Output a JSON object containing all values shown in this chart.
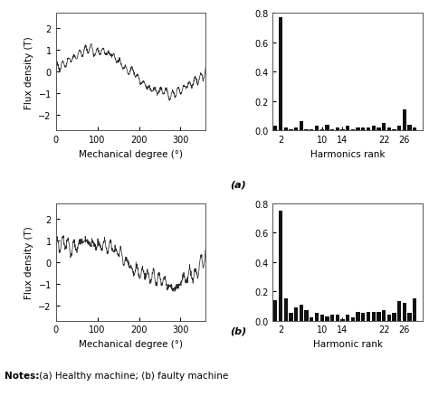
{
  "fig_width": 4.74,
  "fig_height": 4.39,
  "dpi": 100,
  "flux_xlim": [
    0,
    360
  ],
  "flux_xticks": [
    0,
    100,
    200,
    300
  ],
  "flux_yticks": [
    -2,
    -1,
    0,
    1,
    2
  ],
  "flux_ylim": [
    -2.7,
    2.7
  ],
  "flux_xlabel": "Mechanical degree (°)",
  "flux_ylabel": "Flux density (T)",
  "harm_ylim": [
    0,
    0.8
  ],
  "harm_yticks": [
    0.0,
    0.2,
    0.4,
    0.6,
    0.8
  ],
  "harm_xtick_labels": [
    "2",
    "10",
    "14",
    "22",
    "26"
  ],
  "harm_xtick_positions": [
    2,
    10,
    14,
    22,
    26
  ],
  "harm_xlim": [
    0.5,
    29.5
  ],
  "harm_a_xlabel": "Harmonics rank",
  "harm_b_xlabel": "Harmonic rank",
  "label_a": "(a)",
  "label_b": "(b)",
  "notes_bold": "Notes:",
  "notes_rest": " (a) Healthy machine; (b) faulty machine",
  "harm_a_ranks": [
    1,
    2,
    3,
    4,
    5,
    6,
    7,
    8,
    9,
    10,
    11,
    12,
    13,
    14,
    15,
    16,
    17,
    18,
    19,
    20,
    21,
    22,
    23,
    24,
    25,
    26,
    27,
    28
  ],
  "harm_a_values": [
    0.03,
    0.77,
    0.02,
    0.01,
    0.02,
    0.065,
    0.01,
    0.01,
    0.03,
    0.01,
    0.04,
    0.01,
    0.02,
    0.01,
    0.03,
    0.01,
    0.02,
    0.02,
    0.02,
    0.03,
    0.02,
    0.05,
    0.02,
    0.01,
    0.03,
    0.14,
    0.04,
    0.02
  ],
  "harm_b_ranks": [
    1,
    2,
    3,
    4,
    5,
    6,
    7,
    8,
    9,
    10,
    11,
    12,
    13,
    14,
    15,
    16,
    17,
    18,
    19,
    20,
    21,
    22,
    23,
    24,
    25,
    26,
    27,
    28
  ],
  "harm_b_values": [
    0.14,
    0.75,
    0.15,
    0.05,
    0.09,
    0.11,
    0.07,
    0.02,
    0.05,
    0.04,
    0.03,
    0.04,
    0.04,
    0.01,
    0.04,
    0.02,
    0.06,
    0.05,
    0.06,
    0.06,
    0.06,
    0.07,
    0.04,
    0.05,
    0.13,
    0.12,
    0.05,
    0.15
  ],
  "line_color": "#2a2a2a",
  "bar_color": "#111111",
  "bg_color": "#ffffff",
  "tick_fontsize": 7,
  "label_fontsize": 7.5,
  "ab_label_fontsize": 8
}
